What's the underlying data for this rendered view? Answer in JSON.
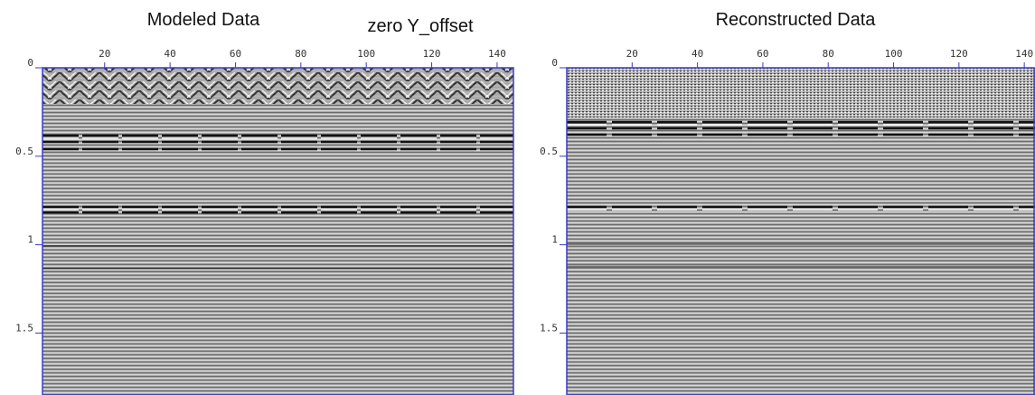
{
  "chart_data": [
    {
      "type": "seismic",
      "title": "Modeled Data",
      "annotation": "zero Y_offset",
      "xlim": [
        1,
        145
      ],
      "xticks": [
        20,
        40,
        60,
        80,
        100,
        120,
        140
      ],
      "ylim": [
        0,
        1.85
      ],
      "yticks": [
        0,
        0.5,
        1,
        1.5
      ],
      "frame_color": "#3b3bc8"
    },
    {
      "type": "seismic",
      "title": "Reconstructed Data",
      "xlim": [
        0,
        143
      ],
      "xticks": [
        20,
        40,
        60,
        80,
        100,
        120,
        140
      ],
      "ylim": [
        0,
        1.85
      ],
      "yticks": [
        0,
        0.5,
        1,
        1.5
      ],
      "frame_color": "#3b3bc8"
    }
  ]
}
